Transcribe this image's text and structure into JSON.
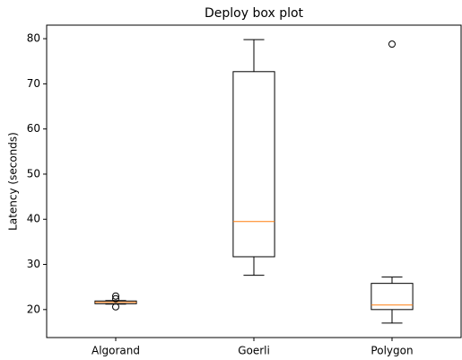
{
  "chart_data": {
    "type": "box",
    "title": "Deploy box plot",
    "y_label": "Latency (seconds)",
    "categories": [
      "Algorand",
      "Goerli",
      "Polygon"
    ],
    "boxes": [
      {
        "whislo": 21.2,
        "q1": 21.3,
        "med": 21.6,
        "q3": 21.9,
        "whishi": 22.0,
        "fliers": [
          23.0,
          22.4,
          20.6
        ]
      },
      {
        "whislo": 27.6,
        "q1": 31.7,
        "med": 39.5,
        "q3": 72.7,
        "whishi": 79.8,
        "fliers": []
      },
      {
        "whislo": 17.0,
        "q1": 20.0,
        "med": 21.0,
        "q3": 25.8,
        "whishi": 27.2,
        "fliers": [
          78.8
        ]
      }
    ],
    "box_color": "#000000",
    "median_color": "#ff7f0e",
    "ylim": [
      13.8,
      83.0
    ],
    "yticks": [
      20,
      30,
      40,
      50,
      60,
      70,
      80
    ]
  }
}
